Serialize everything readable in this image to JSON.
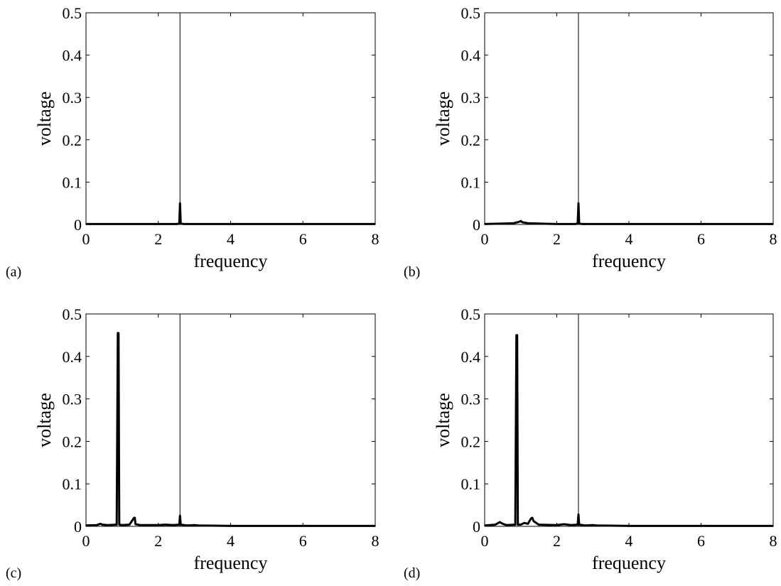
{
  "chart_data": [
    {
      "type": "line",
      "panel_label": "(a)",
      "xlabel": "frequency",
      "ylabel": "voltage",
      "xlim": [
        0,
        8
      ],
      "ylim": [
        0,
        0.5
      ],
      "xticks": [
        "0",
        "2",
        "4",
        "6",
        "8"
      ],
      "yticks": [
        "0",
        "0.1",
        "0.2",
        "0.3",
        "0.4",
        "0.5"
      ],
      "grid": false,
      "vertical_line_x": 2.6,
      "series": [
        {
          "x": [
            0,
            0.5,
            1.0,
            1.5,
            2.0,
            2.5,
            2.58,
            2.6,
            2.62,
            2.7,
            3.0,
            4.0,
            5.0,
            6.0,
            7.0,
            8.0
          ],
          "y": [
            0.001,
            0.001,
            0.001,
            0.001,
            0.001,
            0.001,
            0.002,
            0.05,
            0.002,
            0.001,
            0.001,
            0.001,
            0.001,
            0.001,
            0.001,
            0.001
          ]
        }
      ]
    },
    {
      "type": "line",
      "panel_label": "(b)",
      "xlabel": "frequency",
      "ylabel": "voltage",
      "xlim": [
        0,
        8
      ],
      "ylim": [
        0,
        0.5
      ],
      "xticks": [
        "0",
        "2",
        "4",
        "6",
        "8"
      ],
      "yticks": [
        "0",
        "0.1",
        "0.2",
        "0.3",
        "0.4",
        "0.5"
      ],
      "grid": false,
      "vertical_line_x": 2.6,
      "series": [
        {
          "x": [
            0,
            0.5,
            0.8,
            0.95,
            1.0,
            1.05,
            1.2,
            1.5,
            2.0,
            2.5,
            2.58,
            2.6,
            2.62,
            2.7,
            3.0,
            4.0,
            5.0,
            6.0,
            7.0,
            8.0
          ],
          "y": [
            0.001,
            0.002,
            0.003,
            0.006,
            0.008,
            0.005,
            0.003,
            0.002,
            0.001,
            0.001,
            0.002,
            0.05,
            0.002,
            0.001,
            0.001,
            0.001,
            0.001,
            0.001,
            0.001,
            0.001
          ]
        }
      ]
    },
    {
      "type": "line",
      "panel_label": "(c)",
      "xlabel": "frequency",
      "ylabel": "voltage",
      "xlim": [
        0,
        8
      ],
      "ylim": [
        0,
        0.5
      ],
      "xticks": [
        "0",
        "2",
        "4",
        "6",
        "8"
      ],
      "yticks": [
        "0",
        "0.1",
        "0.2",
        "0.3",
        "0.4",
        "0.5"
      ],
      "grid": false,
      "vertical_line_x": 2.6,
      "series": [
        {
          "x": [
            0,
            0.3,
            0.4,
            0.45,
            0.6,
            0.85,
            0.88,
            0.9,
            0.92,
            1.0,
            1.2,
            1.33,
            1.35,
            1.37,
            1.5,
            2.0,
            2.2,
            2.4,
            2.58,
            2.6,
            2.62,
            2.8,
            3.0,
            3.1,
            4.0,
            5.0,
            6.0,
            7.0,
            8.0
          ],
          "y": [
            0.002,
            0.003,
            0.006,
            0.004,
            0.003,
            0.004,
            0.455,
            0.455,
            0.004,
            0.003,
            0.004,
            0.02,
            0.02,
            0.005,
            0.003,
            0.003,
            0.004,
            0.003,
            0.004,
            0.025,
            0.004,
            0.002,
            0.003,
            0.002,
            0.001,
            0.001,
            0.001,
            0.001,
            0.001
          ]
        }
      ]
    },
    {
      "type": "line",
      "panel_label": "(d)",
      "xlabel": "frequency",
      "ylabel": "voltage",
      "xlim": [
        0,
        8
      ],
      "ylim": [
        0,
        0.5
      ],
      "xticks": [
        "0",
        "2",
        "4",
        "6",
        "8"
      ],
      "yticks": [
        "0",
        "0.1",
        "0.2",
        "0.3",
        "0.4",
        "0.5"
      ],
      "grid": false,
      "vertical_line_x": 2.6,
      "series": [
        {
          "x": [
            0,
            0.3,
            0.42,
            0.5,
            0.6,
            0.85,
            0.88,
            0.9,
            0.92,
            1.0,
            1.1,
            1.2,
            1.28,
            1.32,
            1.36,
            1.5,
            2.0,
            2.2,
            2.4,
            2.58,
            2.6,
            2.62,
            2.8,
            3.0,
            3.1,
            4.0,
            5.0,
            6.0,
            7.0,
            8.0
          ],
          "y": [
            0.002,
            0.004,
            0.01,
            0.006,
            0.003,
            0.004,
            0.45,
            0.45,
            0.004,
            0.004,
            0.008,
            0.006,
            0.018,
            0.02,
            0.012,
            0.004,
            0.003,
            0.005,
            0.003,
            0.004,
            0.028,
            0.004,
            0.002,
            0.003,
            0.002,
            0.001,
            0.001,
            0.001,
            0.001,
            0.001
          ]
        }
      ]
    }
  ]
}
